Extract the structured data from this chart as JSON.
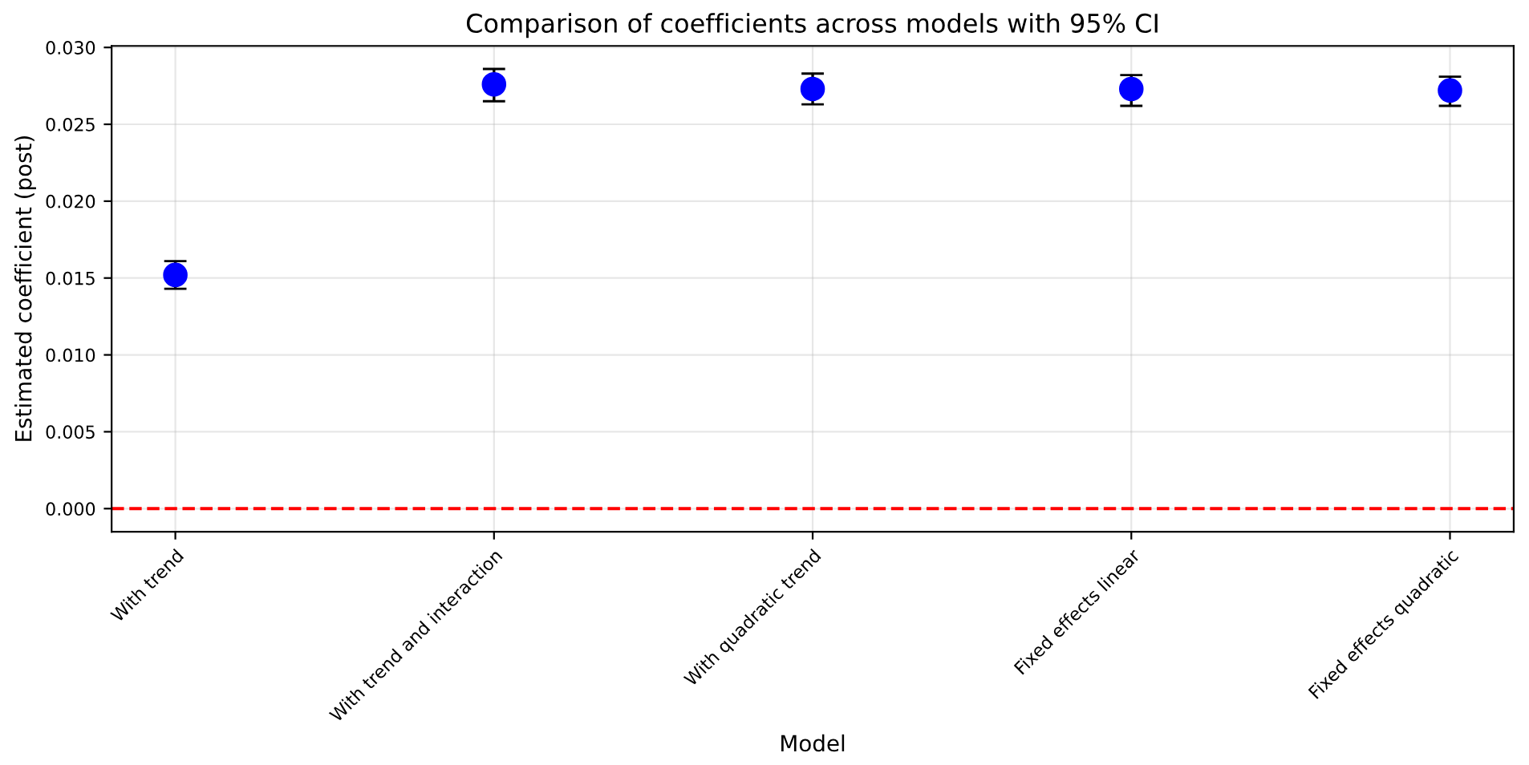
{
  "chart_data": {
    "type": "scatter",
    "title": "Comparison of coefficients across models with 95% CI",
    "xlabel": "Model",
    "ylabel": "Estimated coefficient (post)",
    "categories": [
      "With trend",
      "With trend and interaction",
      "With quadratic trend",
      "Fixed effects linear",
      "Fixed effects quadratic"
    ],
    "series": [
      {
        "color": "#0000ff",
        "values": [
          0.0152,
          0.0276,
          0.0273,
          0.0273,
          0.0272
        ],
        "errors": [
          [
            0.0143,
            0.0161
          ],
          [
            0.0265,
            0.0286
          ],
          [
            0.0263,
            0.0283
          ],
          [
            0.0262,
            0.0282
          ],
          [
            0.0262,
            0.0281
          ]
        ]
      }
    ],
    "ylim": [
      -0.0015,
      0.0301
    ],
    "yticks": [
      {
        "value": 0,
        "label": "0.000"
      },
      {
        "value": 0.005,
        "label": "0.005"
      },
      {
        "value": 0.01,
        "label": "0.010"
      },
      {
        "value": 0.015,
        "label": "0.015"
      },
      {
        "value": 0.02,
        "label": "0.020"
      },
      {
        "value": 0.025,
        "label": "0.025"
      },
      {
        "value": 0.03,
        "label": "0.030"
      }
    ],
    "ref_lines": [
      {
        "axis": "y",
        "value": 0,
        "color": "#ff0000",
        "line_style": "dashed"
      }
    ],
    "grid": true,
    "marker": "circle"
  }
}
